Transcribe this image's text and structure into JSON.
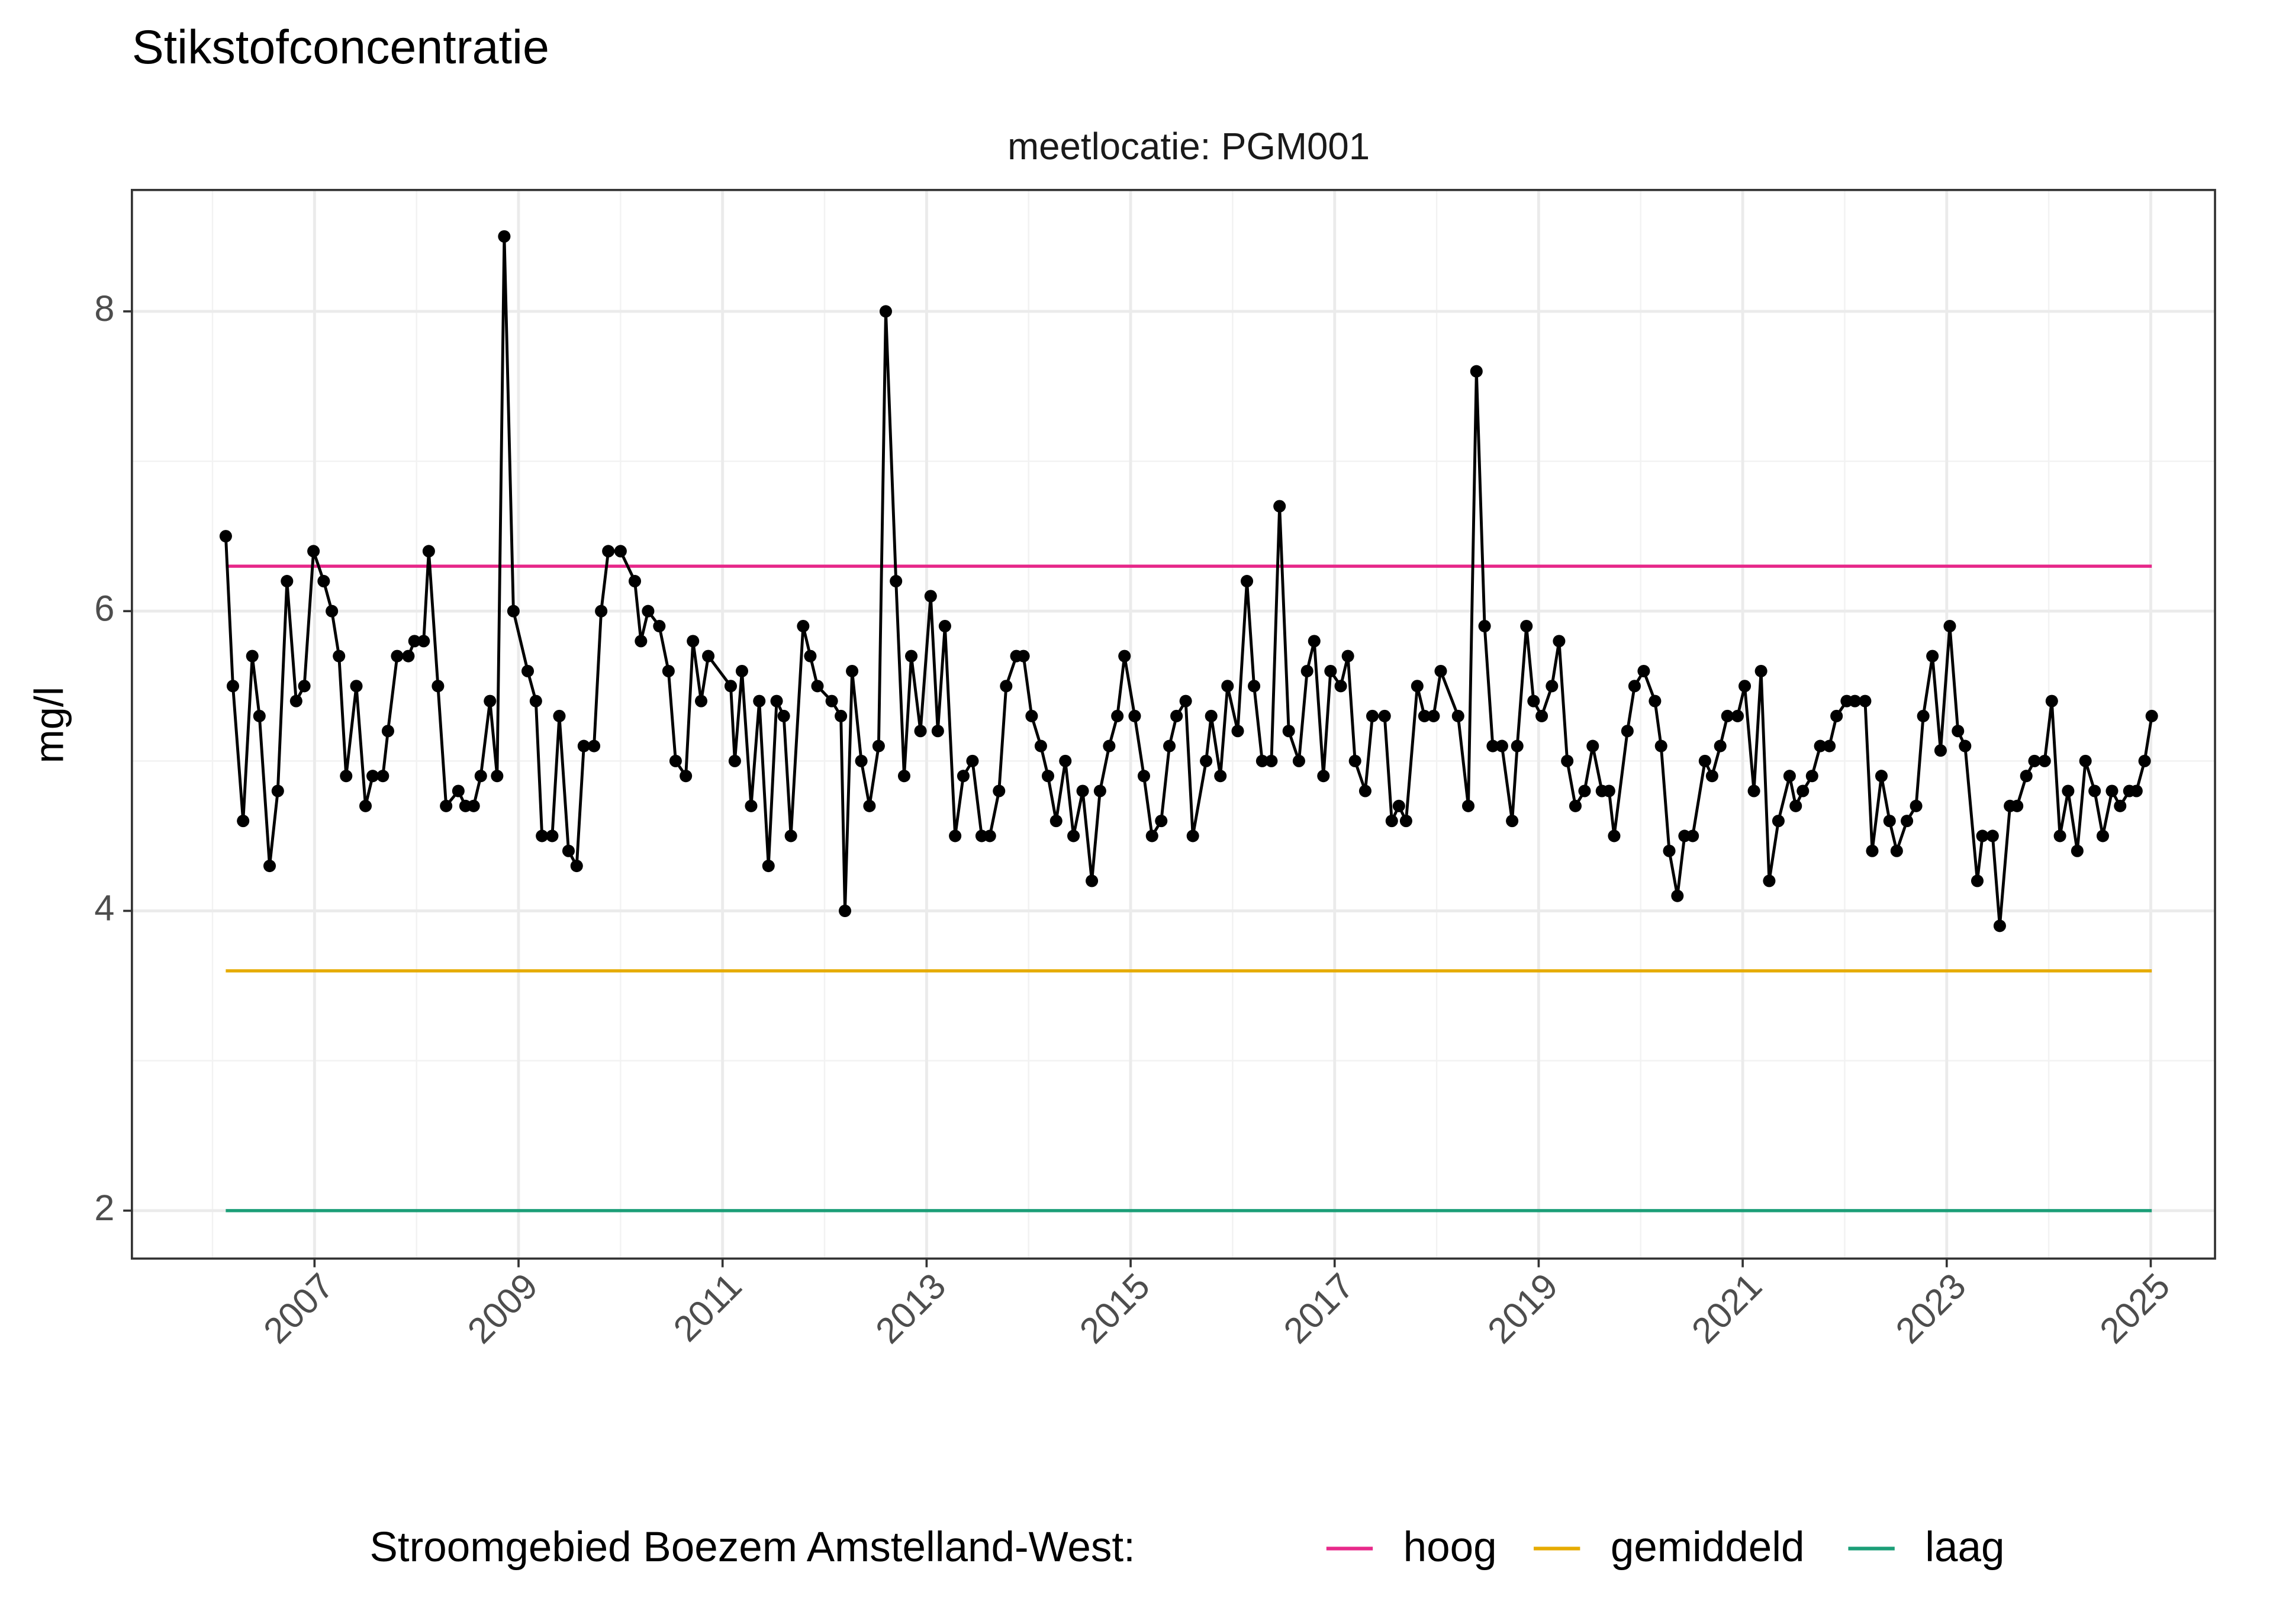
{
  "chart_data": {
    "type": "line",
    "title": "Stikstofconcentratie",
    "subtitle": "meetlocatie: PGM001",
    "y_label": "mg/l",
    "legend_title": "Stroomgebied Boezem Amstelland-West:",
    "legend_position": "bottom",
    "grid": true,
    "xlim": [
      2005.21,
      2025.63
    ],
    "xticks": [
      2007,
      2009,
      2011,
      2013,
      2015,
      2017,
      2019,
      2021,
      2023,
      2025
    ],
    "xminor_ticks": [
      2006,
      2008,
      2010,
      2012,
      2014,
      2016,
      2018,
      2020,
      2022,
      2024
    ],
    "ylim": [
      1.68,
      8.81
    ],
    "yticks": [
      2,
      4,
      6,
      8
    ],
    "yminor_ticks": [
      3,
      5,
      7
    ],
    "series": [
      {
        "color": "#000000",
        "markers": true,
        "x": [
          2006.13,
          2006.2,
          2006.3,
          2006.39,
          2006.46,
          2006.56,
          2006.64,
          2006.73,
          2006.82,
          2006.9,
          2006.99,
          2007.09,
          2007.17,
          2007.24,
          2007.31,
          2007.41,
          2007.5,
          2007.57,
          2007.67,
          2007.72,
          2007.81,
          2007.92,
          2007.98,
          2008.07,
          2008.12,
          2008.21,
          2008.29,
          2008.41,
          2008.48,
          2008.56,
          2008.63,
          2008.72,
          2008.79,
          2008.86,
          2008.95,
          2009.09,
          2009.17,
          2009.23,
          2009.33,
          2009.4,
          2009.49,
          2009.57,
          2009.64,
          2009.74,
          2009.81,
          2009.88,
          2010.0,
          2010.14,
          2010.2,
          2010.27,
          2010.38,
          2010.47,
          2010.54,
          2010.64,
          2010.71,
          2010.79,
          2010.86,
          2011.08,
          2011.12,
          2011.19,
          2011.28,
          2011.36,
          2011.45,
          2011.53,
          2011.6,
          2011.67,
          2011.79,
          2011.86,
          2011.93,
          2012.07,
          2012.16,
          2012.2,
          2012.27,
          2012.36,
          2012.44,
          2012.53,
          2012.6,
          2012.7,
          2012.78,
          2012.85,
          2012.94,
          2013.04,
          2013.11,
          2013.18,
          2013.28,
          2013.36,
          2013.45,
          2013.54,
          2013.62,
          2013.71,
          2013.78,
          2013.88,
          2013.95,
          2014.03,
          2014.12,
          2014.19,
          2014.27,
          2014.36,
          2014.44,
          2014.53,
          2014.62,
          2014.7,
          2014.79,
          2014.87,
          2014.94,
          2015.04,
          2015.13,
          2015.21,
          2015.3,
          2015.38,
          2015.45,
          2015.54,
          2015.61,
          2015.74,
          2015.79,
          2015.88,
          2015.95,
          2016.05,
          2016.14,
          2016.21,
          2016.29,
          2016.38,
          2016.46,
          2016.55,
          2016.65,
          2016.73,
          2016.8,
          2016.89,
          2016.96,
          2017.06,
          2017.13,
          2017.2,
          2017.3,
          2017.37,
          2017.49,
          2017.56,
          2017.63,
          2017.7,
          2017.81,
          2017.88,
          2017.97,
          2018.04,
          2018.21,
          2018.31,
          2018.39,
          2018.47,
          2018.55,
          2018.64,
          2018.74,
          2018.79,
          2018.88,
          2018.95,
          2019.03,
          2019.13,
          2019.2,
          2019.28,
          2019.36,
          2019.45,
          2019.53,
          2019.62,
          2019.69,
          2019.74,
          2019.87,
          2019.94,
          2020.03,
          2020.14,
          2020.2,
          2020.28,
          2020.36,
          2020.43,
          2020.51,
          2020.63,
          2020.7,
          2020.78,
          2020.85,
          2020.95,
          2021.02,
          2021.11,
          2021.18,
          2021.26,
          2021.35,
          2021.46,
          2021.52,
          2021.59,
          2021.68,
          2021.76,
          2021.85,
          2021.92,
          2022.02,
          2022.1,
          2022.2,
          2022.27,
          2022.36,
          2022.44,
          2022.51,
          2022.61,
          2022.7,
          2022.77,
          2022.86,
          2022.94,
          2023.03,
          2023.11,
          2023.18,
          2023.3,
          2023.35,
          2023.45,
          2023.52,
          2023.62,
          2023.69,
          2023.78,
          2023.86,
          2023.96,
          2024.03,
          2024.11,
          2024.19,
          2024.28,
          2024.36,
          2024.45,
          2024.53,
          2024.62,
          2024.7,
          2024.79,
          2024.86,
          2024.94,
          2025.01
        ],
        "values": [
          6.5,
          5.5,
          4.6,
          5.7,
          5.3,
          4.3,
          4.8,
          6.2,
          5.4,
          5.5,
          6.4,
          6.2,
          6.0,
          5.7,
          4.9,
          5.5,
          4.7,
          4.9,
          4.9,
          5.2,
          5.7,
          5.7,
          5.8,
          5.8,
          6.4,
          5.5,
          4.7,
          4.8,
          4.7,
          4.7,
          4.9,
          5.4,
          4.9,
          8.5,
          6.0,
          5.6,
          5.4,
          4.5,
          4.5,
          5.3,
          4.4,
          4.3,
          5.1,
          5.1,
          6.0,
          6.4,
          6.4,
          6.2,
          5.8,
          6.0,
          5.9,
          5.6,
          5.0,
          4.9,
          5.8,
          5.4,
          5.7,
          5.5,
          5.0,
          5.6,
          4.7,
          5.4,
          4.3,
          5.4,
          5.3,
          4.5,
          5.9,
          5.7,
          5.5,
          5.4,
          5.3,
          4.0,
          5.6,
          5.0,
          4.7,
          5.1,
          8.0,
          6.2,
          4.9,
          5.7,
          5.2,
          6.1,
          5.2,
          5.9,
          4.5,
          4.9,
          5.0,
          4.5,
          4.5,
          4.8,
          5.5,
          5.7,
          5.7,
          5.3,
          5.1,
          4.9,
          4.6,
          5.0,
          4.5,
          4.8,
          4.2,
          4.8,
          5.1,
          5.3,
          5.7,
          5.3,
          4.9,
          4.5,
          4.6,
          5.1,
          5.3,
          5.4,
          4.5,
          5.0,
          5.3,
          4.9,
          5.5,
          5.2,
          6.2,
          5.5,
          5.0,
          5.0,
          6.7,
          5.2,
          5.0,
          5.6,
          5.8,
          4.9,
          5.6,
          5.5,
          5.7,
          5.0,
          4.8,
          5.3,
          5.3,
          4.6,
          4.7,
          4.6,
          5.5,
          5.3,
          5.3,
          5.6,
          5.3,
          4.7,
          7.6,
          5.9,
          5.1,
          5.1,
          4.6,
          5.1,
          5.9,
          5.4,
          5.3,
          5.5,
          5.8,
          5.0,
          4.7,
          4.8,
          5.1,
          4.8,
          4.8,
          4.5,
          5.2,
          5.5,
          5.6,
          5.4,
          5.1,
          4.4,
          4.1,
          4.5,
          4.5,
          5.0,
          4.9,
          5.1,
          5.3,
          5.3,
          5.5,
          4.8,
          5.6,
          4.2,
          4.6,
          4.9,
          4.7,
          4.8,
          4.9,
          5.1,
          5.1,
          5.3,
          5.4,
          5.4,
          5.4,
          4.4,
          4.9,
          4.6,
          4.4,
          4.6,
          4.7,
          5.3,
          5.7,
          5.07,
          5.9,
          5.2,
          5.1,
          4.2,
          4.5,
          4.5,
          3.9,
          4.7,
          4.7,
          4.9,
          5.0,
          5.0,
          5.4,
          4.5,
          4.8,
          4.4,
          5.0,
          4.8,
          4.5,
          4.8,
          4.7,
          4.8,
          4.8,
          5.0,
          5.3
        ]
      },
      {
        "name": "hoog",
        "color": "#e7298a",
        "x": [
          2006.13,
          2025.01
        ],
        "values": [
          6.3,
          6.3
        ]
      },
      {
        "name": "gemiddeld",
        "color": "#e6ab02",
        "x": [
          2006.13,
          2025.01
        ],
        "values": [
          3.6,
          3.6
        ]
      },
      {
        "name": "laag",
        "color": "#1b9e77",
        "x": [
          2006.13,
          2025.01
        ],
        "values": [
          2.0,
          2.0
        ]
      }
    ]
  }
}
